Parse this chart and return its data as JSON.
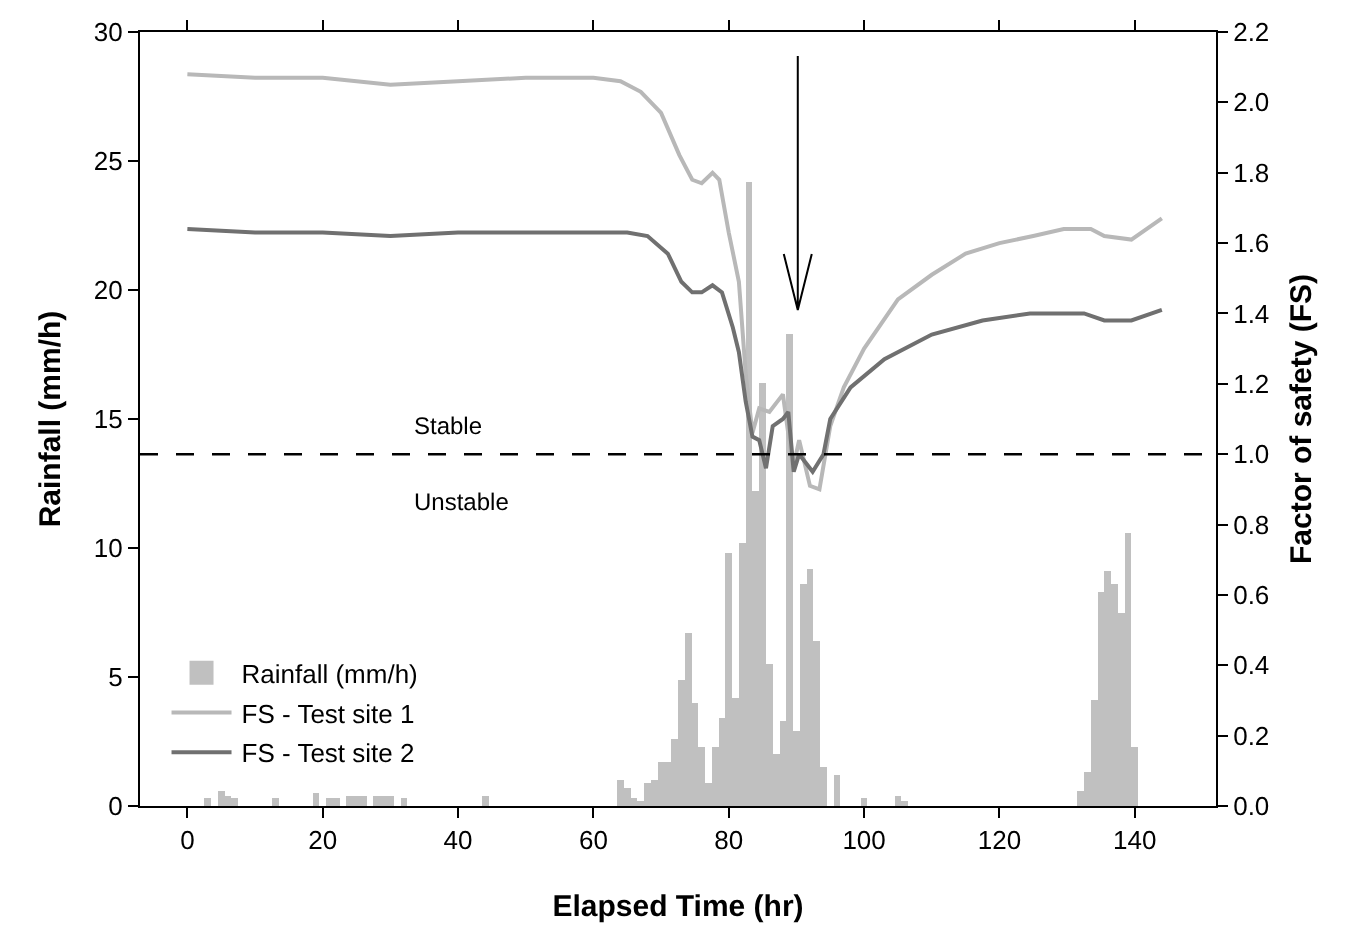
{
  "chart_data": {
    "type": "bar",
    "xlabel": "Elapsed Time (hr)",
    "ylabel": "Rainfall (mm/h)",
    "y2label": "Factor of safety (FS)",
    "xlim": [
      -7,
      152
    ],
    "xticks": [
      0,
      20,
      40,
      60,
      80,
      100,
      120,
      140
    ],
    "ylim": [
      0,
      30
    ],
    "yticks": [
      0,
      5,
      10,
      15,
      20,
      25,
      30
    ],
    "y2lim": [
      0,
      2.2
    ],
    "y2ticks": [
      {
        "value": 0,
        "label": "0.0"
      },
      {
        "value": 0.2,
        "label": "0.2"
      },
      {
        "value": 0.4,
        "label": "0.4"
      },
      {
        "value": 0.6,
        "label": "0.6"
      },
      {
        "value": 0.8,
        "label": "0.8"
      },
      {
        "value": 1,
        "label": "1.0"
      },
      {
        "value": 1.2,
        "label": "1.2"
      },
      {
        "value": 1.4,
        "label": "1.4"
      },
      {
        "value": 1.6,
        "label": "1.6"
      },
      {
        "value": 1.8,
        "label": "1.8"
      },
      {
        "value": 2,
        "label": "2.0"
      },
      {
        "value": 2.2,
        "label": "2.2"
      }
    ],
    "grid": false,
    "legend": "bottom left",
    "series": [
      {
        "name": "Rainfall (mm/h)",
        "color": "#c0c0c0",
        "x": [
          3,
          5,
          6,
          7,
          13,
          19,
          21,
          22,
          24,
          25,
          26,
          28,
          29,
          30,
          32,
          44,
          64,
          65,
          66,
          67,
          68,
          69,
          70,
          71,
          72,
          73,
          74,
          75,
          76,
          77,
          78,
          79,
          80,
          81,
          82,
          83,
          84,
          85,
          86,
          87,
          88,
          89,
          90,
          91,
          92,
          93,
          94,
          96,
          100,
          105,
          106,
          132,
          133,
          134,
          135,
          136,
          137,
          138,
          139,
          140
        ],
        "values": [
          0.3,
          0.6,
          0.4,
          0.3,
          0.3,
          0.5,
          0.3,
          0.3,
          0.4,
          0.4,
          0.4,
          0.4,
          0.4,
          0.4,
          0.3,
          0.4,
          1.0,
          0.7,
          0.3,
          0.2,
          0.9,
          1.0,
          1.7,
          1.7,
          2.6,
          4.9,
          6.7,
          4.0,
          2.3,
          0.9,
          2.3,
          3.4,
          9.8,
          4.2,
          10.2,
          24.2,
          12.2,
          16.4,
          5.5,
          2.0,
          3.3,
          18.3,
          2.9,
          8.6,
          9.2,
          6.4,
          1.5,
          1.2,
          0.3,
          0.4,
          0.2,
          0.6,
          1.3,
          4.1,
          8.3,
          9.1,
          8.6,
          7.5,
          10.6,
          2.3
        ]
      },
      {
        "name": "FS - Test site 1",
        "type": "line",
        "axis": "y2",
        "color": "#b8b8b8",
        "x": [
          0,
          10,
          20,
          30,
          40,
          50,
          60,
          64,
          67,
          70,
          72.7,
          74.6,
          76,
          77.6,
          78.6,
          80,
          81.5,
          82.5,
          83.5,
          84.5,
          86,
          88,
          89.5,
          90.4,
          92,
          93.4,
          95,
          97,
          100,
          105,
          110,
          115,
          120,
          125,
          129.5,
          133.5,
          135.5,
          139.5,
          144
        ],
        "values": [
          2.08,
          2.07,
          2.07,
          2.05,
          2.06,
          2.07,
          2.07,
          2.06,
          2.03,
          1.97,
          1.85,
          1.78,
          1.77,
          1.8,
          1.78,
          1.63,
          1.49,
          1.23,
          1.06,
          1.13,
          1.12,
          1.17,
          0.96,
          1.04,
          0.91,
          0.9,
          1.08,
          1.19,
          1.3,
          1.44,
          1.51,
          1.57,
          1.6,
          1.62,
          1.64,
          1.64,
          1.62,
          1.61,
          1.67
        ]
      },
      {
        "name": "FS - Test site 2",
        "type": "line",
        "axis": "y2",
        "color": "#707070",
        "x": [
          0,
          10,
          20,
          30,
          40,
          50,
          60,
          65,
          68,
          71,
          73,
          74.6,
          76,
          77.6,
          79,
          80.6,
          81.5,
          82.5,
          83.5,
          84.5,
          85.5,
          86.5,
          88,
          88.8,
          89.6,
          90.4,
          92.4,
          94,
          95,
          98,
          103,
          110,
          117.5,
          124.5,
          132.5,
          135.5,
          139.5,
          144
        ],
        "values": [
          1.64,
          1.63,
          1.63,
          1.62,
          1.63,
          1.63,
          1.63,
          1.63,
          1.62,
          1.57,
          1.49,
          1.46,
          1.46,
          1.48,
          1.46,
          1.36,
          1.29,
          1.15,
          1.05,
          1.04,
          0.96,
          1.08,
          1.1,
          1.12,
          0.95,
          1.0,
          0.95,
          1.0,
          1.1,
          1.19,
          1.27,
          1.34,
          1.38,
          1.4,
          1.4,
          1.38,
          1.38,
          1.41
        ]
      }
    ],
    "ref_lines": [
      {
        "axis": "y2",
        "value": 1,
        "color": "#000000",
        "line_style": "dashed"
      }
    ],
    "annotations": [
      "Stable",
      "Unstable"
    ]
  }
}
